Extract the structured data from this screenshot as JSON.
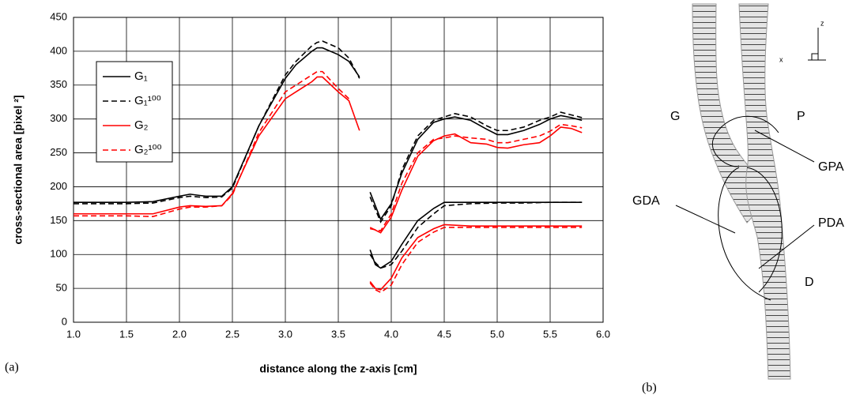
{
  "chart_data": {
    "type": "line",
    "xlabel": "distance along the z-axis [cm]",
    "ylabel": "cross-sectional area [pixel ²]",
    "xlim": [
      1.0,
      6.0
    ],
    "xticks": [
      {
        "value": 1.0,
        "label": "1.0"
      },
      {
        "value": 1.5,
        "label": "1.5"
      },
      {
        "value": 2.0,
        "label": "2.0"
      },
      {
        "value": 2.5,
        "label": "2.5"
      },
      {
        "value": 3.0,
        "label": "3.0"
      },
      {
        "value": 3.5,
        "label": "3.5"
      },
      {
        "value": 4.0,
        "label": "4.0"
      },
      {
        "value": 4.5,
        "label": "4.5"
      },
      {
        "value": 5.0,
        "label": "5.0"
      },
      {
        "value": 5.5,
        "label": "5.5"
      },
      {
        "value": 6.0,
        "label": "6.0"
      }
    ],
    "ylim": [
      0,
      450
    ],
    "yticks": [
      0,
      50,
      100,
      150,
      200,
      250,
      300,
      350,
      400,
      450
    ],
    "grid": true,
    "legend": "upper left",
    "x": [
      1.0,
      1.25,
      1.5,
      1.75,
      2.0,
      2.1,
      2.25,
      2.4,
      2.5,
      2.75,
      3.0,
      3.1,
      3.25,
      3.3,
      3.35,
      3.5,
      3.6,
      3.7,
      null,
      3.8,
      3.9,
      4.0,
      4.1,
      4.25,
      4.4,
      4.5,
      4.6,
      4.75,
      4.9,
      5.0,
      5.1,
      5.25,
      5.4,
      5.5,
      5.6,
      5.7,
      5.8,
      null,
      3.8,
      3.85,
      3.9,
      4.0,
      4.1,
      4.25,
      4.4,
      4.5,
      4.75,
      5.0,
      5.25,
      5.5,
      5.8
    ],
    "series": [
      {
        "name": "G₁",
        "color": "#000000",
        "dashed": false,
        "values": [
          177,
          177,
          177,
          178,
          186,
          189,
          186,
          186,
          200,
          290,
          360,
          380,
          400,
          405,
          405,
          395,
          385,
          362,
          null,
          192,
          152,
          175,
          220,
          270,
          295,
          300,
          303,
          298,
          285,
          277,
          277,
          283,
          292,
          300,
          305,
          302,
          298,
          null,
          107,
          85,
          80,
          90,
          115,
          150,
          168,
          177,
          177,
          177,
          177,
          177,
          177
        ]
      },
      {
        "name": "G₁¹⁰⁰",
        "color": "#000000",
        "dashed": true,
        "values": [
          175,
          175,
          175,
          176,
          184,
          186,
          184,
          185,
          198,
          290,
          365,
          385,
          408,
          413,
          415,
          405,
          390,
          360,
          null,
          185,
          148,
          172,
          225,
          275,
          298,
          303,
          308,
          303,
          290,
          283,
          283,
          288,
          298,
          303,
          310,
          306,
          302,
          null,
          100,
          88,
          80,
          85,
          105,
          140,
          160,
          172,
          175,
          176,
          176,
          177,
          177
        ]
      },
      {
        "name": "G₂",
        "color": "#ff0000",
        "dashed": false,
        "values": [
          160,
          160,
          160,
          160,
          170,
          172,
          171,
          172,
          190,
          275,
          330,
          340,
          355,
          362,
          362,
          340,
          327,
          283,
          null,
          140,
          132,
          155,
          195,
          245,
          268,
          275,
          278,
          265,
          263,
          258,
          257,
          262,
          265,
          275,
          288,
          286,
          280,
          null,
          60,
          50,
          48,
          65,
          95,
          125,
          138,
          144,
          142,
          142,
          142,
          142,
          142
        ]
      },
      {
        "name": "G₂¹⁰⁰",
        "color": "#ff0000",
        "dashed": true,
        "values": [
          157,
          157,
          157,
          156,
          167,
          170,
          170,
          172,
          188,
          280,
          340,
          350,
          365,
          370,
          370,
          345,
          330,
          null,
          null,
          138,
          135,
          160,
          205,
          250,
          270,
          272,
          275,
          272,
          270,
          265,
          265,
          270,
          275,
          282,
          292,
          290,
          287,
          null,
          58,
          48,
          44,
          55,
          85,
          118,
          133,
          140,
          140,
          140,
          140,
          140,
          140
        ]
      }
    ]
  },
  "panel_labels": [
    "(a)",
    "(b)"
  ],
  "diagram": {
    "labels": [
      "G",
      "P",
      "GPA",
      "GDA",
      "PDA",
      "D"
    ],
    "axes": [
      "z",
      "x"
    ]
  }
}
